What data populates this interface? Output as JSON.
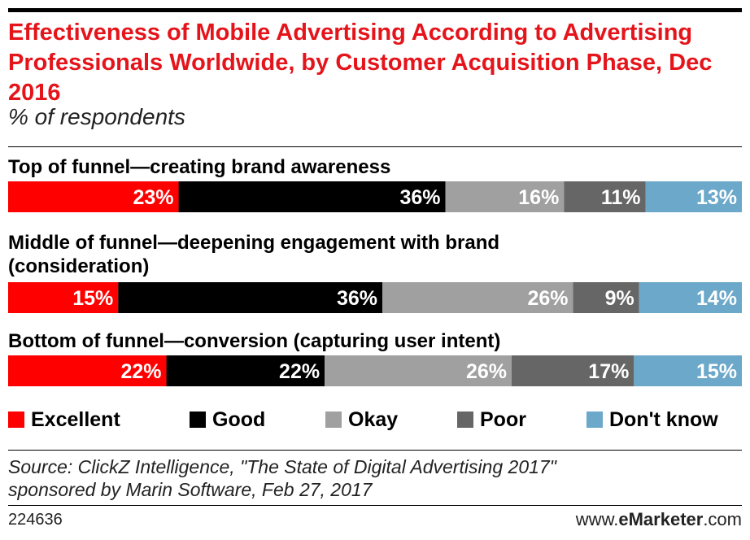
{
  "title": "Effectiveness of Mobile Advertising According to Advertising Professionals Worldwide, by Customer Acquisition Phase, Dec 2016",
  "subtitle": "% of respondents",
  "source_line1": "Source: ClickZ Intelligence, \"The State of Digital Advertising 2017\"",
  "source_line2": "sponsored by Marin Software, Feb 27, 2017",
  "chart_id": "224636",
  "brand": {
    "prefix": "www.",
    "name": "eMarketer",
    "suffix": ".com"
  },
  "colors": {
    "excellent": "#ff0000",
    "good": "#000000",
    "okay": "#a0a0a0",
    "poor": "#666666",
    "dont_know": "#6ba8c9"
  },
  "chart_data": {
    "type": "bar",
    "orientation": "horizontal-stacked-100",
    "categories": [
      "Top of funnel—creating brand awareness",
      "Middle of funnel—deepening engagement with brand (consideration)",
      "Bottom of funnel—conversion (capturing user intent)"
    ],
    "series": [
      {
        "name": "Excellent",
        "values": [
          23,
          15,
          22
        ]
      },
      {
        "name": "Good",
        "values": [
          36,
          36,
          22
        ]
      },
      {
        "name": "Okay",
        "values": [
          16,
          26,
          26
        ]
      },
      {
        "name": "Poor",
        "values": [
          11,
          9,
          17
        ]
      },
      {
        "name": "Don't know",
        "values": [
          13,
          14,
          15
        ]
      }
    ],
    "value_suffix": "%",
    "legend_position": "bottom"
  }
}
